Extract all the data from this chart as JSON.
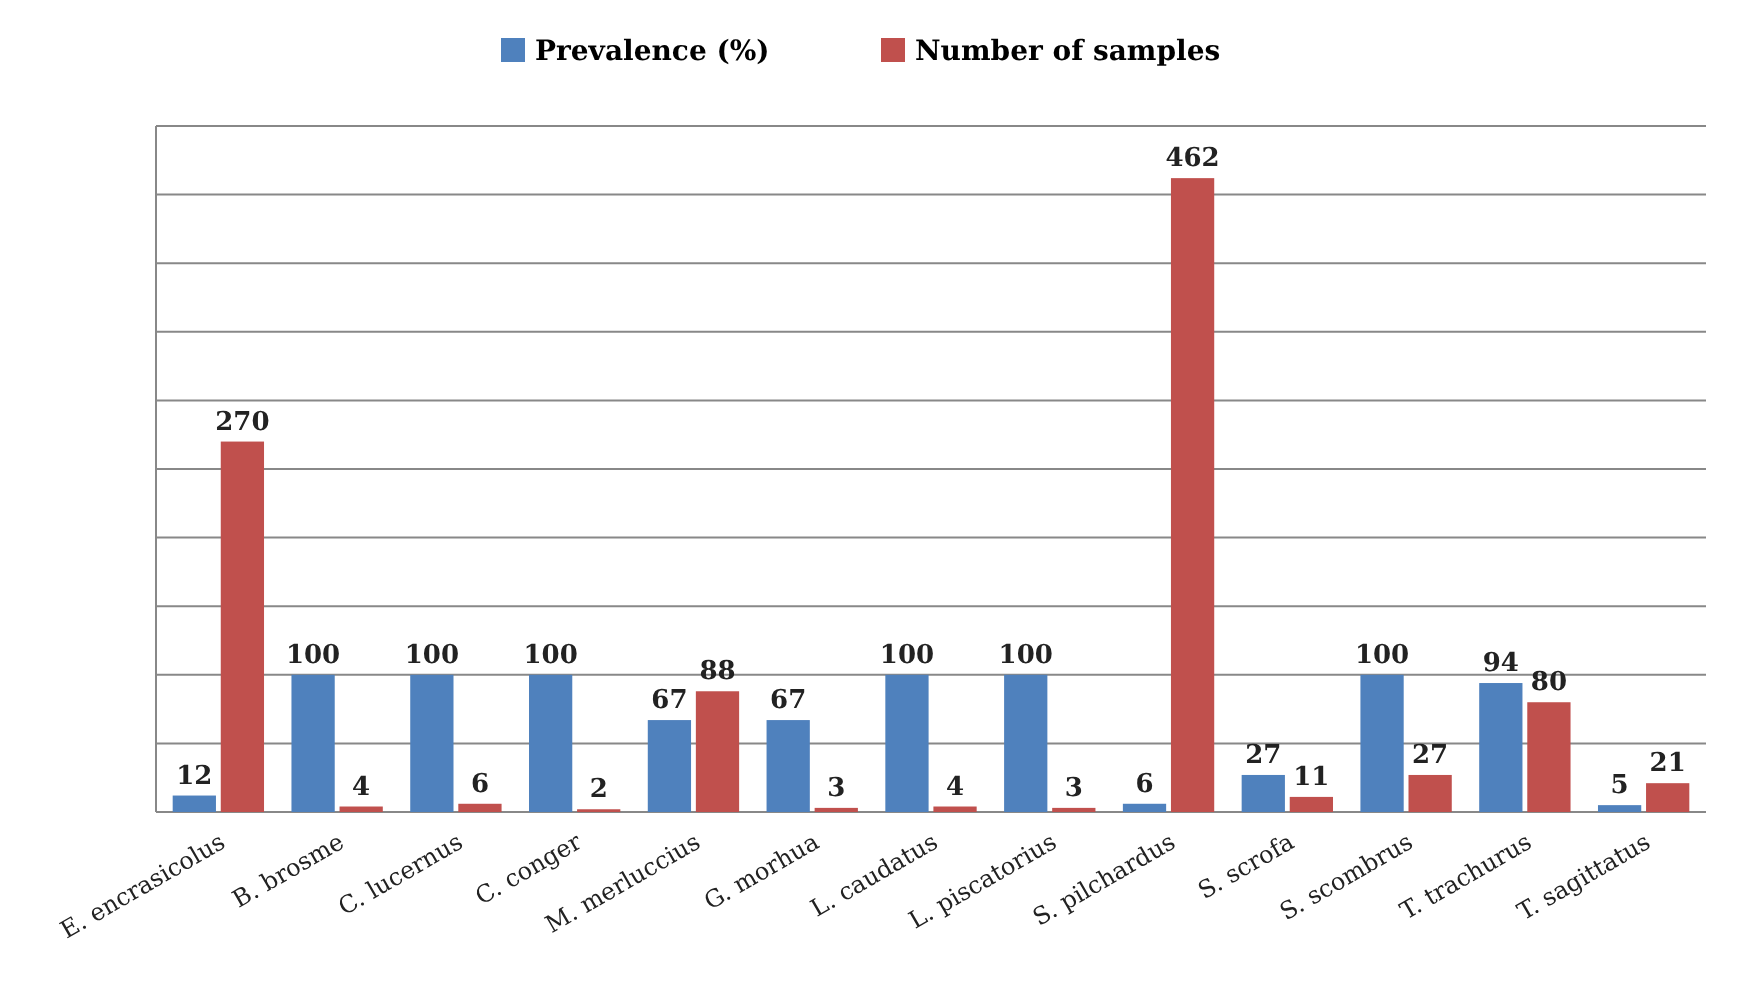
{
  "chart_data": {
    "type": "bar",
    "categories": [
      "E. encrasicolus",
      "B. brosme",
      "C. lucernus",
      "C. conger",
      "M. merluccius",
      "G. morhua",
      "L. caudatus",
      "L. piscatorius",
      "S. pilchardus",
      "S. scrofa",
      "S. scombrus",
      "T. trachurus",
      "T. sagittatus"
    ],
    "series": [
      {
        "name": "Prevalence (%)",
        "color": "#4f81bd",
        "values": [
          12,
          100,
          100,
          100,
          67,
          67,
          100,
          100,
          6,
          27,
          100,
          94,
          5
        ]
      },
      {
        "name": "Number of samples",
        "color": "#c0504d",
        "values": [
          270,
          4,
          6,
          2,
          88,
          3,
          4,
          3,
          462,
          11,
          27,
          80,
          21
        ]
      }
    ],
    "ylim": [
      0,
      500
    ],
    "yticks": [
      {
        "value": 0,
        "label": null
      },
      {
        "value": 50,
        "label": null
      },
      {
        "value": 100,
        "label": null
      },
      {
        "value": 150,
        "label": null
      },
      {
        "value": 200,
        "label": null
      },
      {
        "value": 250,
        "label": null
      },
      {
        "value": 300,
        "label": null
      },
      {
        "value": 350,
        "label": null
      },
      {
        "value": 400,
        "label": null
      },
      {
        "value": 450,
        "label": null
      },
      {
        "value": 500,
        "label": null
      }
    ],
    "grid": true,
    "legend": "top",
    "data_labels": true,
    "tick_labels": "x"
  }
}
